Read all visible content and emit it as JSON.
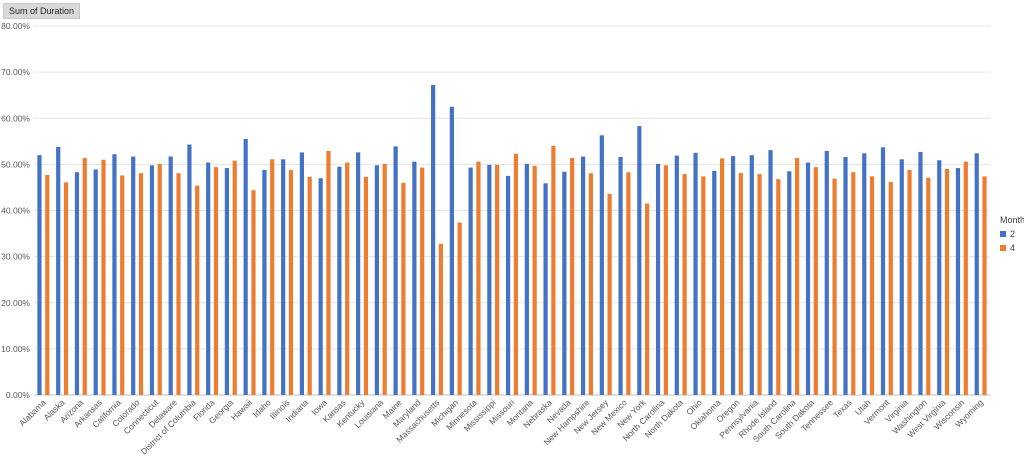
{
  "field_button": {
    "label": "Sum of Duration"
  },
  "legend": {
    "title": "Month",
    "items": [
      {
        "label": "2",
        "color": "#4472c4"
      },
      {
        "label": "4",
        "color": "#ed7d31"
      }
    ]
  },
  "chart_data": {
    "type": "bar",
    "title": "",
    "xlabel": "",
    "ylabel": "",
    "ylim": [
      0,
      80
    ],
    "yticks": [
      "0.00%",
      "10.00%",
      "20.00%",
      "30.00%",
      "40.00%",
      "50.00%",
      "60.00%",
      "70.00%",
      "80.00%"
    ],
    "grid": true,
    "legend_position": "right",
    "categories": [
      "Alabama",
      "Alaska",
      "Arizona",
      "Arkansas",
      "California",
      "Colorado",
      "Connecticut",
      "Delaware",
      "District of Columbia",
      "Florida",
      "Georgia",
      "Hawaii",
      "Idaho",
      "Illinois",
      "Indiana",
      "Iowa",
      "Kansas",
      "Kentucky",
      "Louisiana",
      "Maine",
      "Maryland",
      "Massachusetts",
      "Michigan",
      "Minnesota",
      "Mississippi",
      "Missouri",
      "Montana",
      "Nebraska",
      "Nevada",
      "New Hampshire",
      "New Jersey",
      "New Mexico",
      "New York",
      "North Carolina",
      "North Dakota",
      "Ohio",
      "Oklahoma",
      "Oregon",
      "Pennsylvania",
      "Rhode Island",
      "South Carolina",
      "South Dakota",
      "Tennessee",
      "Texas",
      "Utah",
      "Vermont",
      "Virginia",
      "Washington",
      "West Virginia",
      "Wisconsin",
      "Wyoming"
    ],
    "series": [
      {
        "name": "2",
        "color": "#4472c4",
        "values": [
          52.0,
          53.8,
          48.3,
          48.9,
          52.2,
          51.7,
          49.8,
          51.7,
          54.3,
          50.4,
          49.2,
          55.5,
          48.8,
          51.1,
          52.6,
          47.0,
          49.5,
          52.6,
          49.8,
          53.9,
          50.6,
          67.2,
          62.5,
          49.3,
          49.9,
          47.5,
          50.1,
          45.9,
          48.4,
          51.7,
          56.3,
          51.6,
          58.3,
          50.1,
          51.9,
          52.5,
          48.6,
          51.8,
          52.0,
          53.1,
          48.5,
          50.4,
          52.9,
          51.6,
          52.4,
          53.7,
          51.1,
          52.7,
          50.9,
          49.2,
          52.4
        ]
      },
      {
        "name": "4",
        "color": "#ed7d31",
        "values": [
          47.7,
          46.1,
          51.4,
          51.0,
          47.6,
          48.1,
          50.1,
          48.1,
          45.4,
          49.4,
          50.8,
          44.4,
          51.1,
          48.8,
          47.3,
          52.9,
          50.4,
          47.3,
          50.1,
          46.0,
          49.3,
          32.8,
          37.4,
          50.6,
          49.9,
          52.3,
          49.7,
          54.0,
          51.4,
          48.1,
          43.6,
          48.3,
          41.5,
          49.8,
          47.9,
          47.4,
          51.3,
          48.1,
          47.9,
          46.8,
          51.4,
          49.4,
          46.9,
          48.3,
          47.4,
          46.2,
          48.8,
          47.1,
          49.0,
          50.6,
          47.4
        ]
      }
    ]
  }
}
